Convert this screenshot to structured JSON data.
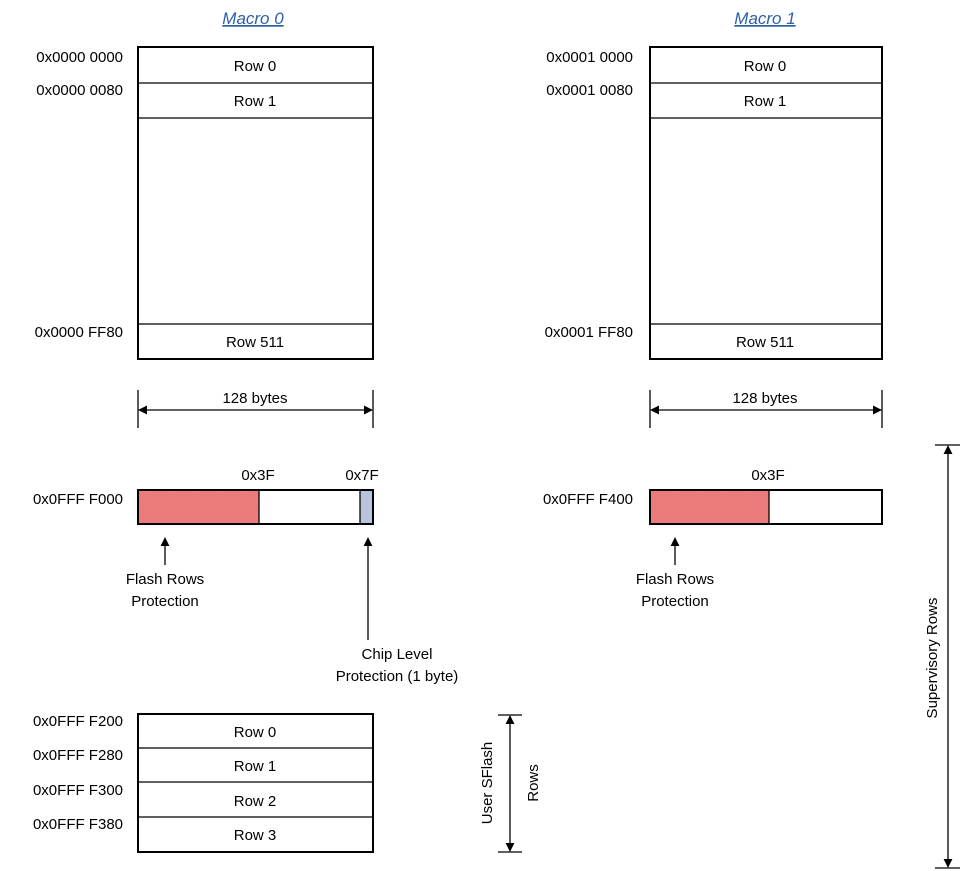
{
  "macro0": {
    "title": "Macro 0",
    "addresses": [
      "0x0000 0000",
      "0x0000 0080",
      "0x0000 FF80"
    ],
    "rows": [
      "Row 0",
      "Row 1",
      "Row 511"
    ],
    "width_label": "128 bytes"
  },
  "macro1": {
    "title": "Macro 1",
    "addresses": [
      "0x0001 0000",
      "0x0001 0080",
      "0x0001 FF80"
    ],
    "rows": [
      "Row 0",
      "Row 1",
      "Row 511"
    ],
    "width_label": "128 bytes"
  },
  "supervisory0": {
    "address": "0x0FFF F000",
    "offset_a": "0x3F",
    "offset_b": "0x7F",
    "flash_protection_label": [
      "Flash Rows",
      "Protection"
    ],
    "chip_protection_label": [
      "Chip Level",
      "Protection (1 byte)"
    ]
  },
  "supervisory1": {
    "address": "0x0FFF F400",
    "offset_a": "0x3F",
    "flash_protection_label": [
      "Flash Rows",
      "Protection"
    ]
  },
  "user_sflash": {
    "addresses": [
      "0x0FFF F200",
      "0x0FFF F280",
      "0x0FFF F300",
      "0x0FFF F380"
    ],
    "rows": [
      "Row 0",
      "Row 1",
      "Row 2",
      "Row 3"
    ],
    "label": [
      "User SFlash",
      "Rows"
    ]
  },
  "supervisory_label": "Supervisory Rows",
  "colors": {
    "flash_protection": "#f08080",
    "chip_protection": "#b8c4dc",
    "title": "#2e5fa8"
  }
}
